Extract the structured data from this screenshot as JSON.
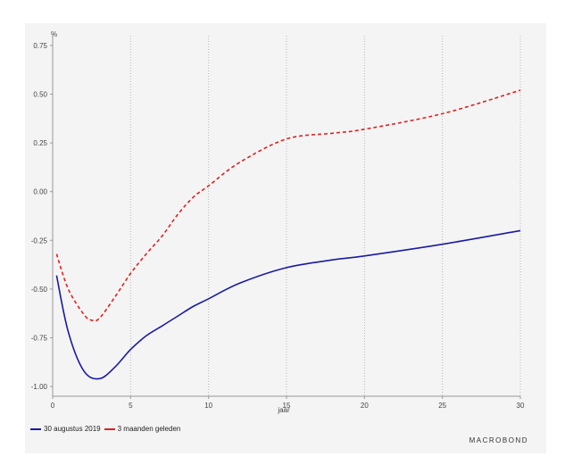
{
  "chart_data": {
    "type": "line",
    "ylabel": "%",
    "xlabel": "jaar",
    "xlim": [
      0,
      30
    ],
    "ylim": [
      -1.05,
      0.8
    ],
    "x_ticks": [
      0,
      5,
      10,
      15,
      20,
      25,
      30
    ],
    "y_ticks": [
      0.75,
      0.5,
      0.25,
      0.0,
      -0.25,
      -0.5,
      -0.75,
      -1.0
    ],
    "y_tick_labels": [
      "0.75",
      "0.50",
      "0.25",
      "0.00",
      "-0.25",
      "-0.50",
      "-0.75",
      "-1.00"
    ],
    "grid": "vertical-dotted",
    "legend_placement": "bottom-left",
    "series": [
      {
        "name": "30 augustus 2019",
        "color": "#1a1aa6",
        "style": "solid",
        "x": [
          0.25,
          1,
          2,
          3,
          4,
          5,
          6,
          7,
          8,
          9,
          10,
          12,
          15,
          18,
          20,
          25,
          30
        ],
        "y": [
          -0.43,
          -0.72,
          -0.92,
          -0.96,
          -0.9,
          -0.81,
          -0.74,
          -0.69,
          -0.64,
          -0.59,
          -0.55,
          -0.47,
          -0.39,
          -0.35,
          -0.33,
          -0.27,
          -0.2
        ]
      },
      {
        "name": "3 maanden geleden",
        "color": "#e02020",
        "style": "dashed",
        "x": [
          0.25,
          1,
          2,
          2.5,
          3,
          4,
          5,
          6,
          7,
          8,
          9,
          10,
          12,
          15,
          18,
          20,
          25,
          30
        ],
        "y": [
          -0.32,
          -0.5,
          -0.63,
          -0.66,
          -0.65,
          -0.54,
          -0.42,
          -0.32,
          -0.23,
          -0.12,
          -0.03,
          0.03,
          0.15,
          0.27,
          0.3,
          0.32,
          0.4,
          0.52
        ]
      }
    ]
  },
  "brand": {
    "logo_text": "MACROBOND"
  }
}
